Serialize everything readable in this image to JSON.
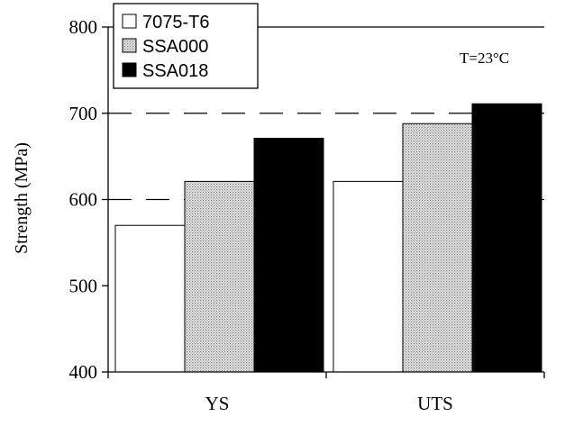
{
  "chart_data": {
    "type": "bar",
    "categories": [
      "YS",
      "UTS"
    ],
    "series": [
      {
        "name": "7075-T6",
        "values": [
          570,
          621
        ],
        "fill": "white"
      },
      {
        "name": "SSA000",
        "values": [
          621,
          688
        ],
        "fill": "dots"
      },
      {
        "name": "SSA018",
        "values": [
          671,
          711
        ],
        "fill": "black"
      }
    ],
    "ylabel": "Strength (MPa)",
    "xlabel": "",
    "ylim": [
      400,
      800
    ],
    "yticks": [
      400,
      500,
      600,
      700,
      800
    ],
    "gridlines": [
      {
        "y": 600,
        "style": "dashed"
      },
      {
        "y": 700,
        "style": "dashed"
      },
      {
        "y": 800,
        "style": "solid"
      }
    ],
    "legend": {
      "placement": "top-left"
    },
    "annotation": {
      "text": "T=23°C",
      "x": "UTS",
      "y": 760
    },
    "colors": {
      "axis": "#000000",
      "bar_edge": "#000000",
      "black_fill": "#000000",
      "white_fill": "#ffffff",
      "dot_fill": "#e8e8e8",
      "dot": "#7a7a7a"
    }
  }
}
